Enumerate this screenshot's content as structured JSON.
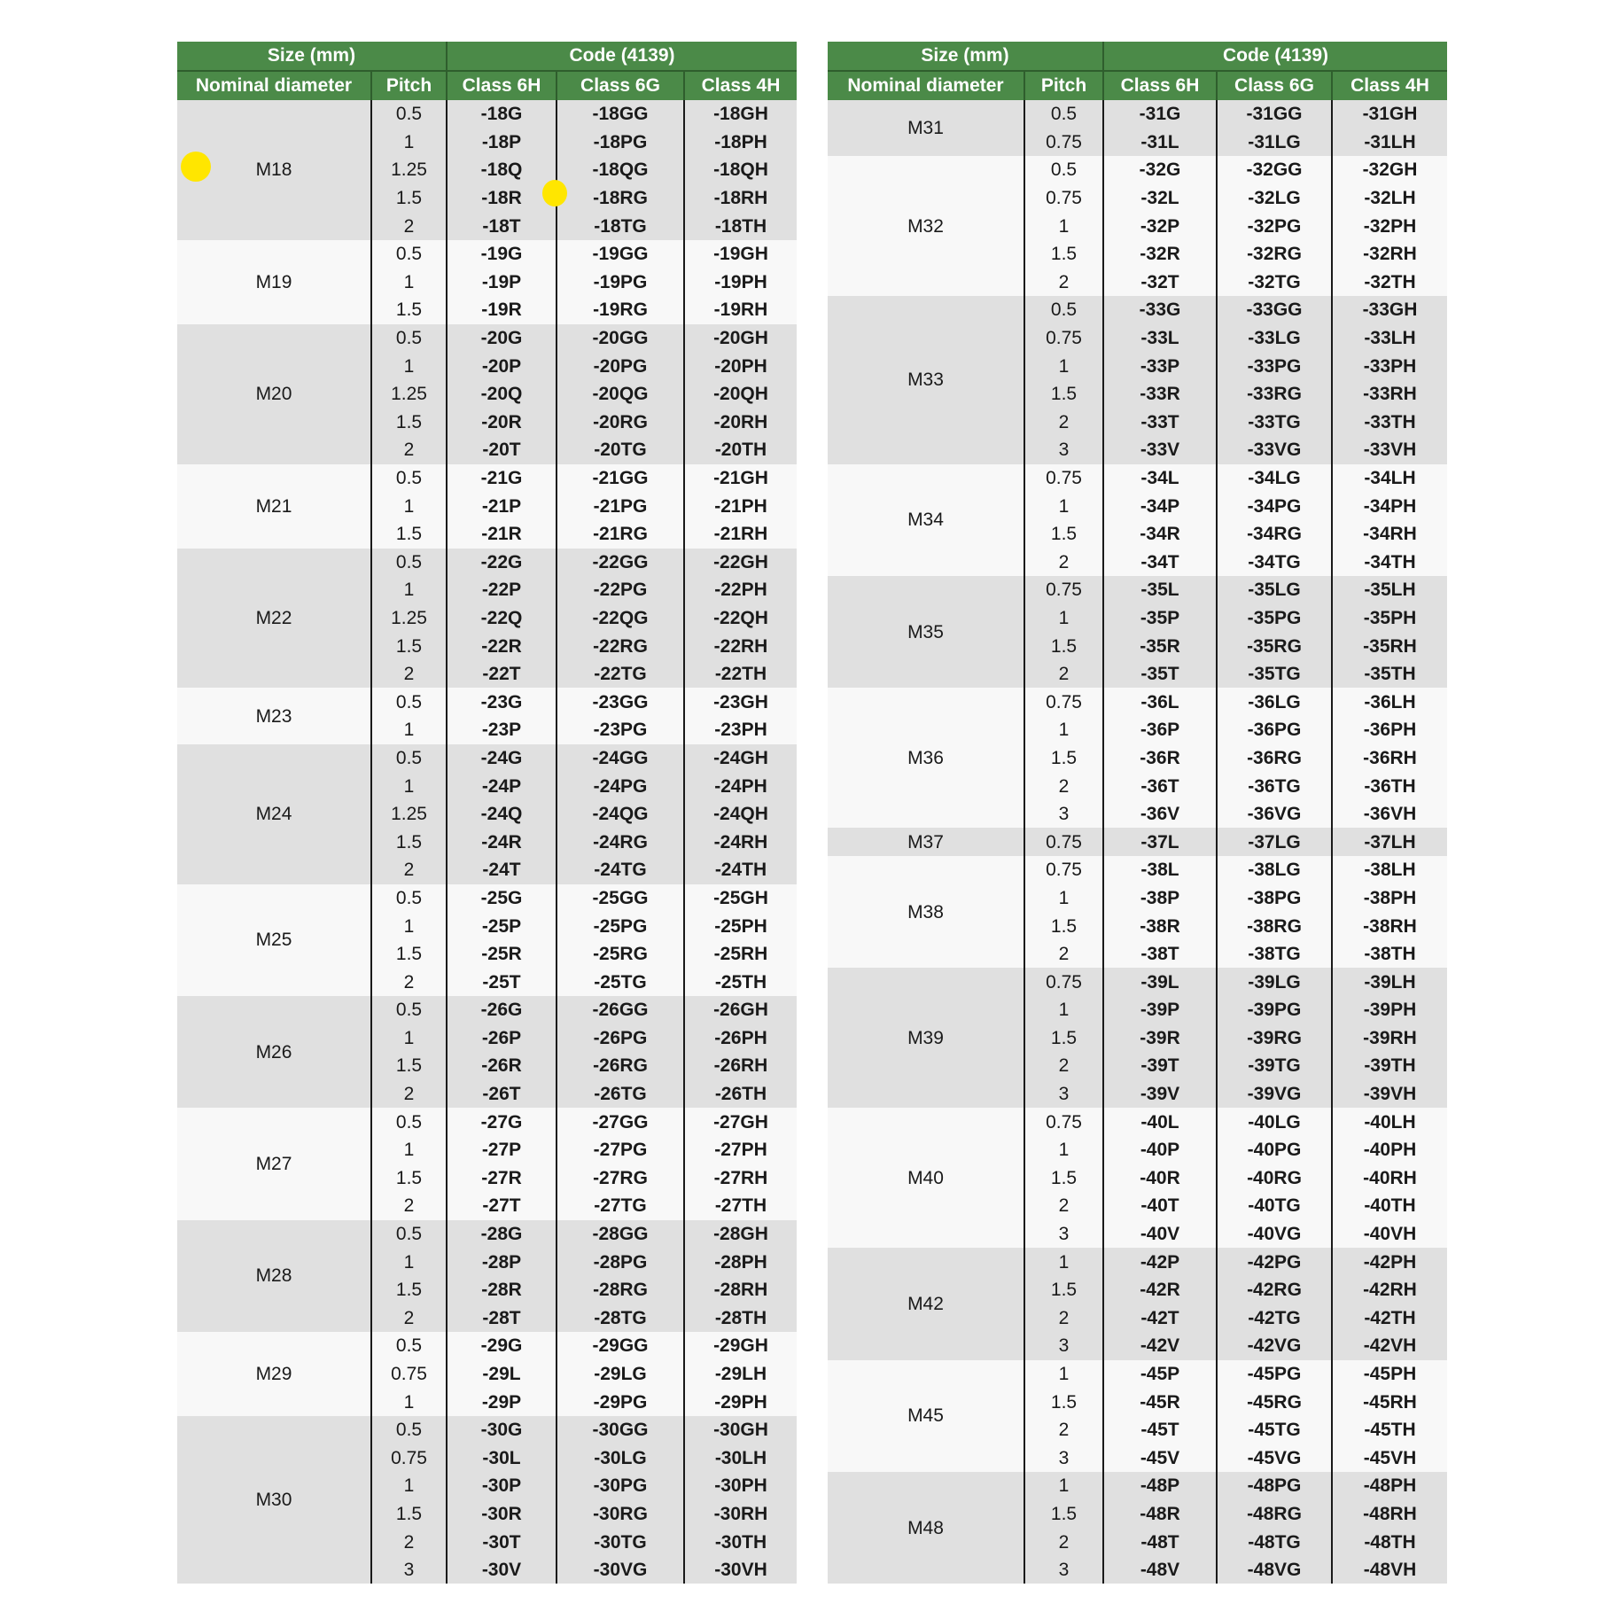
{
  "header": {
    "size": "Size (mm)",
    "code": "Code (4139)",
    "nominal": "Nominal diameter",
    "pitch": "Pitch",
    "class_6h": "Class 6H",
    "class_6g": "Class 6G",
    "class_4h": "Class 4H"
  },
  "colors": {
    "header_green": "#4b8a48",
    "row_gray": "#e0e0e0",
    "row_white": "#f8f8f8",
    "marker_yellow": "#ffe600"
  },
  "tables": [
    {
      "groups": [
        {
          "d": "M18",
          "rows": [
            [
              "0.5",
              "-18G",
              "-18GG",
              "-18GH"
            ],
            [
              "1",
              "-18P",
              "-18PG",
              "-18PH"
            ],
            [
              "1.25",
              "-18Q",
              "-18QG",
              "-18QH"
            ],
            [
              "1.5",
              "-18R",
              "-18RG",
              "-18RH"
            ],
            [
              "2",
              "-18T",
              "-18TG",
              "-18TH"
            ]
          ]
        },
        {
          "d": "M19",
          "rows": [
            [
              "0.5",
              "-19G",
              "-19GG",
              "-19GH"
            ],
            [
              "1",
              "-19P",
              "-19PG",
              "-19PH"
            ],
            [
              "1.5",
              "-19R",
              "-19RG",
              "-19RH"
            ]
          ]
        },
        {
          "d": "M20",
          "rows": [
            [
              "0.5",
              "-20G",
              "-20GG",
              "-20GH"
            ],
            [
              "1",
              "-20P",
              "-20PG",
              "-20PH"
            ],
            [
              "1.25",
              "-20Q",
              "-20QG",
              "-20QH"
            ],
            [
              "1.5",
              "-20R",
              "-20RG",
              "-20RH"
            ],
            [
              "2",
              "-20T",
              "-20TG",
              "-20TH"
            ]
          ]
        },
        {
          "d": "M21",
          "rows": [
            [
              "0.5",
              "-21G",
              "-21GG",
              "-21GH"
            ],
            [
              "1",
              "-21P",
              "-21PG",
              "-21PH"
            ],
            [
              "1.5",
              "-21R",
              "-21RG",
              "-21RH"
            ]
          ]
        },
        {
          "d": "M22",
          "rows": [
            [
              "0.5",
              "-22G",
              "-22GG",
              "-22GH"
            ],
            [
              "1",
              "-22P",
              "-22PG",
              "-22PH"
            ],
            [
              "1.25",
              "-22Q",
              "-22QG",
              "-22QH"
            ],
            [
              "1.5",
              "-22R",
              "-22RG",
              "-22RH"
            ],
            [
              "2",
              "-22T",
              "-22TG",
              "-22TH"
            ]
          ]
        },
        {
          "d": "M23",
          "rows": [
            [
              "0.5",
              "-23G",
              "-23GG",
              "-23GH"
            ],
            [
              "1",
              "-23P",
              "-23PG",
              "-23PH"
            ]
          ]
        },
        {
          "d": "M24",
          "rows": [
            [
              "0.5",
              "-24G",
              "-24GG",
              "-24GH"
            ],
            [
              "1",
              "-24P",
              "-24PG",
              "-24PH"
            ],
            [
              "1.25",
              "-24Q",
              "-24QG",
              "-24QH"
            ],
            [
              "1.5",
              "-24R",
              "-24RG",
              "-24RH"
            ],
            [
              "2",
              "-24T",
              "-24TG",
              "-24TH"
            ]
          ]
        },
        {
          "d": "M25",
          "rows": [
            [
              "0.5",
              "-25G",
              "-25GG",
              "-25GH"
            ],
            [
              "1",
              "-25P",
              "-25PG",
              "-25PH"
            ],
            [
              "1.5",
              "-25R",
              "-25RG",
              "-25RH"
            ],
            [
              "2",
              "-25T",
              "-25TG",
              "-25TH"
            ]
          ]
        },
        {
          "d": "M26",
          "rows": [
            [
              "0.5",
              "-26G",
              "-26GG",
              "-26GH"
            ],
            [
              "1",
              "-26P",
              "-26PG",
              "-26PH"
            ],
            [
              "1.5",
              "-26R",
              "-26RG",
              "-26RH"
            ],
            [
              "2",
              "-26T",
              "-26TG",
              "-26TH"
            ]
          ]
        },
        {
          "d": "M27",
          "rows": [
            [
              "0.5",
              "-27G",
              "-27GG",
              "-27GH"
            ],
            [
              "1",
              "-27P",
              "-27PG",
              "-27PH"
            ],
            [
              "1.5",
              "-27R",
              "-27RG",
              "-27RH"
            ],
            [
              "2",
              "-27T",
              "-27TG",
              "-27TH"
            ]
          ]
        },
        {
          "d": "M28",
          "rows": [
            [
              "0.5",
              "-28G",
              "-28GG",
              "-28GH"
            ],
            [
              "1",
              "-28P",
              "-28PG",
              "-28PH"
            ],
            [
              "1.5",
              "-28R",
              "-28RG",
              "-28RH"
            ],
            [
              "2",
              "-28T",
              "-28TG",
              "-28TH"
            ]
          ]
        },
        {
          "d": "M29",
          "rows": [
            [
              "0.5",
              "-29G",
              "-29GG",
              "-29GH"
            ],
            [
              "0.75",
              "-29L",
              "-29LG",
              "-29LH"
            ],
            [
              "1",
              "-29P",
              "-29PG",
              "-29PH"
            ]
          ]
        },
        {
          "d": "M30",
          "rows": [
            [
              "0.5",
              "-30G",
              "-30GG",
              "-30GH"
            ],
            [
              "0.75",
              "-30L",
              "-30LG",
              "-30LH"
            ],
            [
              "1",
              "-30P",
              "-30PG",
              "-30PH"
            ],
            [
              "1.5",
              "-30R",
              "-30RG",
              "-30RH"
            ],
            [
              "2",
              "-30T",
              "-30TG",
              "-30TH"
            ],
            [
              "3",
              "-30V",
              "-30VG",
              "-30VH"
            ]
          ]
        }
      ]
    },
    {
      "groups": [
        {
          "d": "M31",
          "rows": [
            [
              "0.5",
              "-31G",
              "-31GG",
              "-31GH"
            ],
            [
              "0.75",
              "-31L",
              "-31LG",
              "-31LH"
            ]
          ]
        },
        {
          "d": "M32",
          "rows": [
            [
              "0.5",
              "-32G",
              "-32GG",
              "-32GH"
            ],
            [
              "0.75",
              "-32L",
              "-32LG",
              "-32LH"
            ],
            [
              "1",
              "-32P",
              "-32PG",
              "-32PH"
            ],
            [
              "1.5",
              "-32R",
              "-32RG",
              "-32RH"
            ],
            [
              "2",
              "-32T",
              "-32TG",
              "-32TH"
            ]
          ]
        },
        {
          "d": "M33",
          "rows": [
            [
              "0.5",
              "-33G",
              "-33GG",
              "-33GH"
            ],
            [
              "0.75",
              "-33L",
              "-33LG",
              "-33LH"
            ],
            [
              "1",
              "-33P",
              "-33PG",
              "-33PH"
            ],
            [
              "1.5",
              "-33R",
              "-33RG",
              "-33RH"
            ],
            [
              "2",
              "-33T",
              "-33TG",
              "-33TH"
            ],
            [
              "3",
              "-33V",
              "-33VG",
              "-33VH"
            ]
          ]
        },
        {
          "d": "M34",
          "rows": [
            [
              "0.75",
              "-34L",
              "-34LG",
              "-34LH"
            ],
            [
              "1",
              "-34P",
              "-34PG",
              "-34PH"
            ],
            [
              "1.5",
              "-34R",
              "-34RG",
              "-34RH"
            ],
            [
              "2",
              "-34T",
              "-34TG",
              "-34TH"
            ]
          ]
        },
        {
          "d": "M35",
          "rows": [
            [
              "0.75",
              "-35L",
              "-35LG",
              "-35LH"
            ],
            [
              "1",
              "-35P",
              "-35PG",
              "-35PH"
            ],
            [
              "1.5",
              "-35R",
              "-35RG",
              "-35RH"
            ],
            [
              "2",
              "-35T",
              "-35TG",
              "-35TH"
            ]
          ]
        },
        {
          "d": "M36",
          "rows": [
            [
              "0.75",
              "-36L",
              "-36LG",
              "-36LH"
            ],
            [
              "1",
              "-36P",
              "-36PG",
              "-36PH"
            ],
            [
              "1.5",
              "-36R",
              "-36RG",
              "-36RH"
            ],
            [
              "2",
              "-36T",
              "-36TG",
              "-36TH"
            ],
            [
              "3",
              "-36V",
              "-36VG",
              "-36VH"
            ]
          ]
        },
        {
          "d": "M37",
          "rows": [
            [
              "0.75",
              "-37L",
              "-37LG",
              "-37LH"
            ]
          ]
        },
        {
          "d": "M38",
          "rows": [
            [
              "0.75",
              "-38L",
              "-38LG",
              "-38LH"
            ],
            [
              "1",
              "-38P",
              "-38PG",
              "-38PH"
            ],
            [
              "1.5",
              "-38R",
              "-38RG",
              "-38RH"
            ],
            [
              "2",
              "-38T",
              "-38TG",
              "-38TH"
            ]
          ]
        },
        {
          "d": "M39",
          "rows": [
            [
              "0.75",
              "-39L",
              "-39LG",
              "-39LH"
            ],
            [
              "1",
              "-39P",
              "-39PG",
              "-39PH"
            ],
            [
              "1.5",
              "-39R",
              "-39RG",
              "-39RH"
            ],
            [
              "2",
              "-39T",
              "-39TG",
              "-39TH"
            ],
            [
              "3",
              "-39V",
              "-39VG",
              "-39VH"
            ]
          ]
        },
        {
          "d": "M40",
          "rows": [
            [
              "0.75",
              "-40L",
              "-40LG",
              "-40LH"
            ],
            [
              "1",
              "-40P",
              "-40PG",
              "-40PH"
            ],
            [
              "1.5",
              "-40R",
              "-40RG",
              "-40RH"
            ],
            [
              "2",
              "-40T",
              "-40TG",
              "-40TH"
            ],
            [
              "3",
              "-40V",
              "-40VG",
              "-40VH"
            ]
          ]
        },
        {
          "d": "M42",
          "rows": [
            [
              "1",
              "-42P",
              "-42PG",
              "-42PH"
            ],
            [
              "1.5",
              "-42R",
              "-42RG",
              "-42RH"
            ],
            [
              "2",
              "-42T",
              "-42TG",
              "-42TH"
            ],
            [
              "3",
              "-42V",
              "-42VG",
              "-42VH"
            ]
          ]
        },
        {
          "d": "M45",
          "rows": [
            [
              "1",
              "-45P",
              "-45PG",
              "-45PH"
            ],
            [
              "1.5",
              "-45R",
              "-45RG",
              "-45RH"
            ],
            [
              "2",
              "-45T",
              "-45TG",
              "-45TH"
            ],
            [
              "3",
              "-45V",
              "-45VG",
              "-45VH"
            ]
          ]
        },
        {
          "d": "M48",
          "rows": [
            [
              "1",
              "-48P",
              "-48PG",
              "-48PH"
            ],
            [
              "1.5",
              "-48R",
              "-48RG",
              "-48RH"
            ],
            [
              "2",
              "-48T",
              "-48TG",
              "-48TH"
            ],
            [
              "3",
              "-48V",
              "-48VG",
              "-48VH"
            ]
          ]
        }
      ]
    }
  ]
}
